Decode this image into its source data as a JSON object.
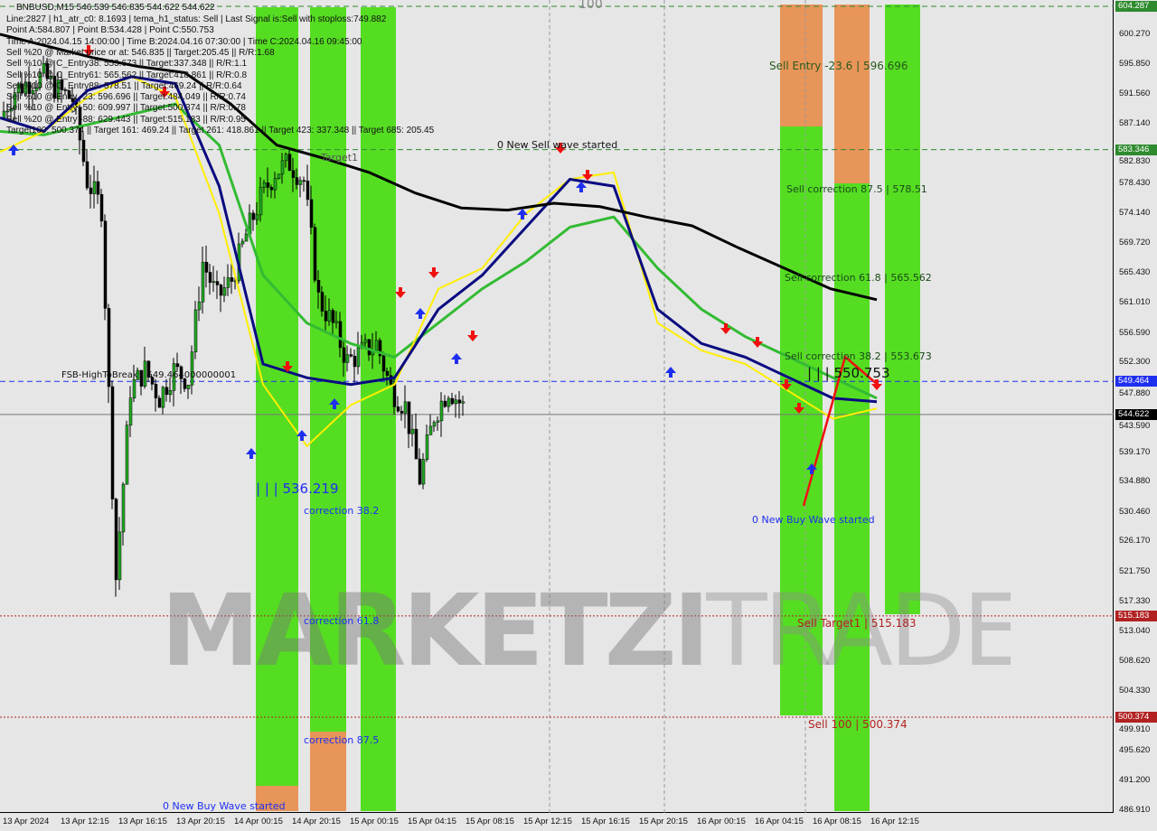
{
  "header": {
    "symbol_line": "BNBUSD,M15  546.539 546.835 544.622 544.622",
    "lines": [
      "Line:2827 | h1_atr_c0: 8.1693 | tema_h1_status: Sell | Last Signal is:Sell with stoploss:749.882",
      "Point A:584.807 | Point B:534.428 | Point C:550.753",
      "Time A:2024.04.15 14:00:00 | Time B:2024.04.16 07:30:00 | Time C:2024.04.16 09:45:00",
      "Sell %20 @ Market price or at: 546.835 || Target:205.45 || R/R:1.68",
      "Sell %10 @ C_Entry38: 553.673 || Target:337.348 || R/R:1.1",
      "Sell %10 @ C_Entry61: 565.562 || Target:418.861 || R/R:0.8",
      "Sell %10 @ C_Entry88: 578.51 || Target:469.24 || R/R:0.64",
      "Sell %10 @ Entry -23: 596.696 || Target:484.049 || R/R:0.74",
      "Sell %10 @ Entry -50: 609.997 || Target:500.374 || R/R:0.78",
      "Sell %20 @ Entry -88: 629.443 || Target:515.183 || R/R:0.95",
      "Target100: 500.374 || Target 161: 469.24 || Target 261: 418.861 || Target 423: 337.348 || Target 685: 205.45"
    ]
  },
  "annotations": {
    "sell_entry": "Sell Entry -23.6 | 596.696",
    "sell_corr_875": "Sell correction 87.5 | 578.51",
    "sell_corr_618": "Sell correction 61.8 | 565.562",
    "sell_corr_382": "Sell correction 38.2 | 553.673",
    "point_c": "| | | 550.753",
    "new_buy_right": "0 New Buy Wave started",
    "sell_target1": "Sell Target1 | 515.183",
    "sell_100": "Sell 100 | 500.374",
    "new_sell": "0 New Sell wave started",
    "target1": "Target1",
    "fsb": "FSB-HighToBreak | 549.464000000001",
    "point_b_left": "| | | 536.219",
    "corr_382": "correction 38.2",
    "corr_618": "correction 61.8",
    "corr_875": "correction 87.5",
    "new_buy_left": "0 New Buy Wave started",
    "hundred": "100",
    "watermark": "MARKETZITRADE"
  },
  "chart_data": {
    "type": "candlestick",
    "title": "BNBUSD,M15",
    "ylim": [
      486.91,
      604.287
    ],
    "y_ticks": [
      600.27,
      595.85,
      591.56,
      587.14,
      582.83,
      578.43,
      574.14,
      569.72,
      565.43,
      561.01,
      556.59,
      552.3,
      547.88,
      543.59,
      539.17,
      534.88,
      530.46,
      526.17,
      521.75,
      517.33,
      513.04,
      508.62,
      504.33,
      499.91,
      495.62,
      491.2,
      486.91
    ],
    "x_ticks": [
      "13 Apr 2024",
      "13 Apr 12:15",
      "13 Apr 16:15",
      "13 Apr 20:15",
      "14 Apr 00:15",
      "14 Apr 20:15",
      "15 Apr 00:15",
      "15 Apr 04:15",
      "15 Apr 08:15",
      "15 Apr 12:15",
      "15 Apr 16:15",
      "15 Apr 20:15",
      "16 Apr 00:15",
      "16 Apr 04:15",
      "16 Apr 08:15",
      "16 Apr 12:15"
    ],
    "close": [
      588.0,
      592.0,
      593.3,
      594.0,
      592.0,
      590.7,
      578.8,
      574.8,
      520.7,
      548.4,
      551.1,
      547.1,
      551.1,
      549.7,
      566.9,
      561.6,
      564.3,
      570.9,
      576.2,
      580.1,
      581.4,
      578.8,
      561.6,
      557.7,
      552.4,
      553.7,
      555.0,
      548.4,
      545.8,
      535.2,
      544.5,
      548.4,
      545.8
    ],
    "ma_black": [
      600.2,
      598.5,
      596.8,
      595.5,
      594.6,
      590,
      584,
      582.1,
      580,
      577,
      574.8,
      574.5,
      575.5,
      575,
      573.5,
      572.2,
      569,
      566,
      563,
      561.4
    ],
    "ma_green": [
      586,
      585.5,
      587,
      588.5,
      590,
      584,
      565,
      558,
      555,
      553,
      558,
      563,
      567,
      572,
      573.5,
      566,
      560,
      556,
      553,
      550,
      547
    ],
    "ma_blue": [
      588,
      586,
      592,
      594,
      593,
      578,
      552,
      550,
      549,
      550,
      560,
      565,
      572,
      579,
      578,
      560,
      555,
      553,
      550,
      547,
      546.5
    ],
    "ma_yellow": [
      583,
      586,
      591,
      594,
      591,
      574,
      549,
      540,
      546,
      549,
      563,
      566,
      574,
      579,
      580,
      558,
      554,
      552,
      548,
      544,
      545.5
    ],
    "levels": [
      {
        "price": 604.287,
        "color": "#2e8b2e",
        "style": "dashed"
      },
      {
        "price": 583.346,
        "color": "#2e8b2e",
        "style": "dashed"
      },
      {
        "price": 549.464,
        "color": "#1f2ff0",
        "style": "dashed"
      },
      {
        "price": 544.622,
        "color": "#777777",
        "style": "solid"
      },
      {
        "price": 515.183,
        "color": "#b22222",
        "style": "dotted"
      },
      {
        "price": 500.374,
        "color": "#b22222",
        "style": "dotted"
      }
    ],
    "price_tags": [
      {
        "value": "604.287",
        "color": "#2e8b2e"
      },
      {
        "value": "583.346",
        "color": "#2e8b2e"
      },
      {
        "value": "549.464",
        "color": "#1f2ff0"
      },
      {
        "value": "544.622",
        "color": "#000000"
      },
      {
        "value": "515.183",
        "color": "#b22222"
      },
      {
        "value": "500.374",
        "color": "#b22222"
      }
    ],
    "colors": {
      "zone_green": "#55dd22",
      "zone_orange": "#e8955a",
      "bull": "#22aa22",
      "bear": "#000000"
    }
  }
}
